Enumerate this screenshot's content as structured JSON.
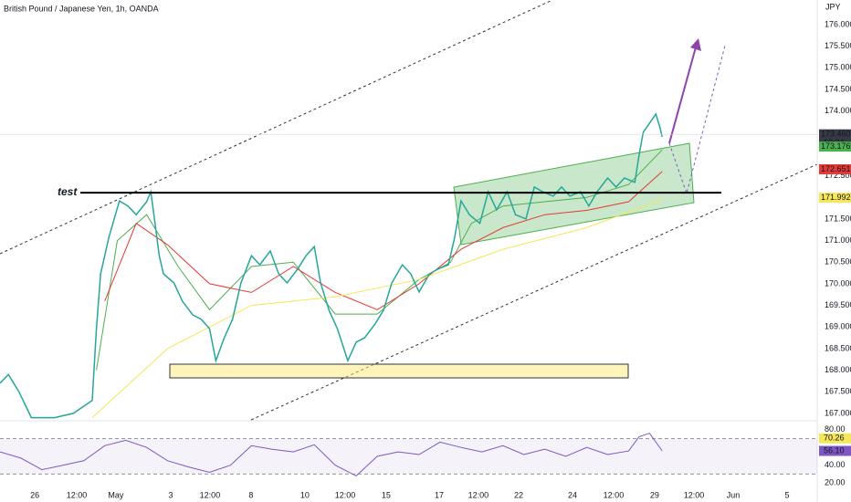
{
  "chart_data": {
    "type": "line",
    "title": "British Pound / Japanese Yen, 1h, OANDA",
    "currency": "JPY",
    "xlim": [
      0,
      390
    ],
    "xticks": [
      {
        "value": 16.6,
        "label": "26"
      },
      {
        "value": 36.6,
        "label": "12:00"
      },
      {
        "value": 55.3,
        "label": "May"
      },
      {
        "value": 81.5,
        "label": "3"
      },
      {
        "value": 100.2,
        "label": "12:00"
      },
      {
        "value": 119.8,
        "label": "8"
      },
      {
        "value": 145.5,
        "label": "10"
      },
      {
        "value": 164.7,
        "label": "12:00"
      },
      {
        "value": 184.3,
        "label": "15"
      },
      {
        "value": 209.6,
        "label": "17"
      },
      {
        "value": 228.3,
        "label": "12:00"
      },
      {
        "value": 247.5,
        "label": "22"
      },
      {
        "value": 273.2,
        "label": "24"
      },
      {
        "value": 292.8,
        "label": "12:00"
      },
      {
        "value": 312.4,
        "label": "29"
      },
      {
        "value": 331.2,
        "label": "12:00"
      },
      {
        "value": 349.9,
        "label": "Jun"
      },
      {
        "value": 375.6,
        "label": "5"
      }
    ],
    "ylim": [
      166.85,
      176.57
    ],
    "yticks": [
      {
        "value": 176,
        "label": "176.000"
      },
      {
        "value": 175.5,
        "label": "175.500"
      },
      {
        "value": 175,
        "label": "175.000"
      },
      {
        "value": 174.5,
        "label": "174.500"
      },
      {
        "value": 174,
        "label": "174.000"
      },
      {
        "value": 172.5,
        "label": "172.500"
      },
      {
        "value": 171.5,
        "label": "171.500"
      },
      {
        "value": 171,
        "label": "171.000"
      },
      {
        "value": 170.5,
        "label": "170.500"
      },
      {
        "value": 170,
        "label": "170.000"
      },
      {
        "value": 169.5,
        "label": "169.500"
      },
      {
        "value": 169,
        "label": "169.000"
      },
      {
        "value": 168.5,
        "label": "168.500"
      },
      {
        "value": 168,
        "label": "168.000"
      },
      {
        "value": 167.5,
        "label": "167.500"
      },
      {
        "value": 167,
        "label": "167.000"
      }
    ],
    "price": {
      "color": "#26a69a",
      "x": [
        0,
        4,
        9,
        15,
        26,
        35,
        44,
        46,
        48,
        52,
        57,
        61,
        65,
        70,
        72,
        74,
        76,
        78,
        83,
        87,
        92,
        96,
        100,
        103,
        107,
        111,
        115,
        120,
        124,
        129,
        133,
        137,
        142,
        146,
        150,
        153,
        157,
        161,
        166,
        170,
        174,
        179,
        183,
        187,
        192,
        196,
        200,
        205,
        209,
        214,
        217,
        220,
        224,
        229,
        233,
        237,
        242,
        246,
        251,
        255,
        259,
        264,
        268,
        272,
        277,
        281,
        285,
        290,
        294,
        298,
        303,
        305,
        307,
        310,
        313,
        315,
        316
      ],
      "values": [
        167.7,
        167.9,
        167.5,
        166.9,
        166.9,
        167.0,
        167.3,
        168.96,
        170.23,
        171.08,
        171.92,
        171.8,
        171.6,
        171.9,
        172.13,
        171.4,
        170.65,
        170.23,
        170.02,
        169.6,
        169.28,
        169.18,
        168.96,
        168.22,
        168.75,
        169.18,
        170.02,
        170.65,
        170.44,
        170.76,
        170.23,
        170.02,
        170.34,
        170.65,
        170.86,
        170.02,
        169.39,
        168.96,
        168.22,
        168.65,
        168.75,
        169.07,
        169.39,
        170.02,
        170.44,
        170.23,
        169.81,
        170.23,
        170.34,
        170.44,
        171.08,
        171.92,
        171.6,
        171.4,
        172.13,
        171.71,
        172.13,
        171.6,
        171.5,
        172.24,
        172.13,
        172.03,
        172.24,
        172.03,
        172.13,
        171.8,
        172.13,
        172.45,
        172.24,
        172.45,
        172.35,
        172.98,
        173.51,
        173.72,
        173.93,
        173.61,
        173.4
      ]
    },
    "moving_averages": [
      {
        "color": "#4caf50",
        "x": [
          46,
          56,
          70,
          85,
          100,
          120,
          140,
          160,
          180,
          200,
          215,
          225,
          240,
          260,
          280,
          300,
          316
        ],
        "values": [
          168.0,
          171.0,
          171.6,
          170.4,
          169.4,
          170.4,
          170.5,
          169.3,
          169.3,
          170.1,
          170.5,
          171.4,
          171.8,
          171.9,
          172.0,
          172.3,
          173.1
        ]
      },
      {
        "color": "#e53935",
        "x": [
          50,
          65,
          80,
          100,
          120,
          140,
          160,
          180,
          200,
          220,
          240,
          260,
          280,
          300,
          316
        ],
        "values": [
          169.6,
          171.4,
          170.9,
          170.0,
          169.8,
          170.4,
          169.8,
          169.4,
          170.0,
          170.8,
          171.3,
          171.6,
          171.7,
          171.9,
          172.6
        ]
      },
      {
        "color": "#f5e65a",
        "x": [
          44,
          80,
          120,
          160,
          200,
          240,
          280,
          316
        ],
        "values": [
          166.9,
          168.5,
          169.5,
          169.7,
          170.1,
          170.8,
          171.3,
          171.95
        ]
      }
    ],
    "price_labels": [
      {
        "value": 173.46,
        "label": "173.460",
        "color": "#363a45",
        "extra": "10:34"
      },
      {
        "value": 173.176,
        "label": "173.176",
        "color": "#4caf50"
      },
      {
        "value": 172.651,
        "label": "172.651",
        "color": "#e53935"
      },
      {
        "value": 171.992,
        "label": "171.992",
        "color": "#f5e65a"
      }
    ],
    "level": {
      "label": "test",
      "value": 172.11
    },
    "rsi": {
      "color": "#7e57c2",
      "ylim": [
        14,
        89
      ],
      "yticks": [
        {
          "value": 80,
          "label": "80.00"
        },
        {
          "value": 40,
          "label": "40.00"
        },
        {
          "value": 20,
          "label": "20.00"
        }
      ],
      "bands": [
        70,
        30
      ],
      "x": [
        0,
        10,
        20,
        30,
        40,
        50,
        60,
        70,
        80,
        90,
        100,
        110,
        120,
        130,
        140,
        150,
        160,
        170,
        180,
        190,
        200,
        210,
        220,
        230,
        240,
        250,
        260,
        270,
        280,
        290,
        300,
        305,
        310,
        316
      ],
      "values": [
        55,
        48,
        35,
        40,
        45,
        62,
        68,
        60,
        45,
        38,
        32,
        40,
        62,
        58,
        55,
        63,
        40,
        28,
        50,
        55,
        52,
        66,
        60,
        55,
        62,
        52,
        58,
        50,
        60,
        52,
        56,
        72,
        76,
        56.1
      ],
      "value_labels": [
        {
          "value": 70.26,
          "label": "70.26",
          "color": "#f5e65a"
        },
        {
          "value": 56.1,
          "label": "56.10",
          "color": "#7e57c2"
        }
      ]
    }
  }
}
